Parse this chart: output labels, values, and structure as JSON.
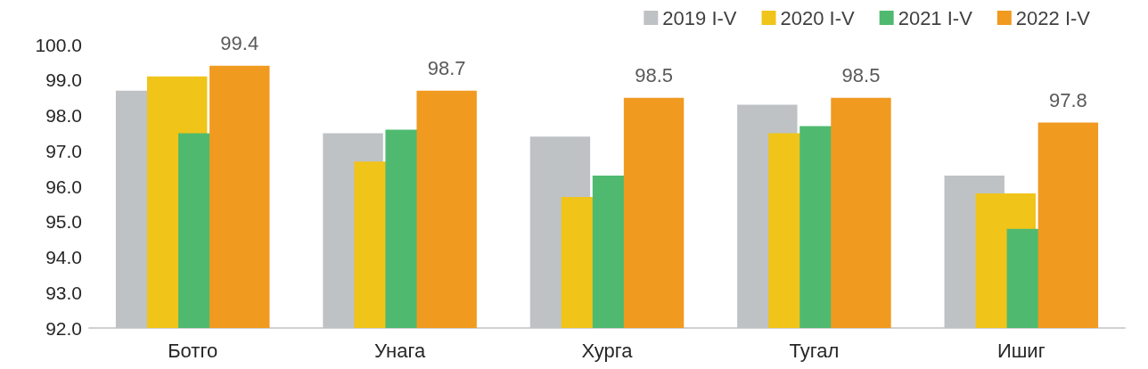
{
  "chart_data": {
    "type": "bar",
    "categories": [
      "Ботго",
      "Унага",
      "Хурга",
      "Тугал",
      "Ишиг"
    ],
    "series": [
      {
        "name": "2019 I-V",
        "color": "#bec2c5",
        "values": [
          98.7,
          97.5,
          97.4,
          98.3,
          96.3
        ]
      },
      {
        "name": "2020 I-V",
        "color": "#f0c419",
        "values": [
          99.1,
          96.7,
          95.7,
          97.5,
          95.8
        ]
      },
      {
        "name": "2021 I-V",
        "color": "#4fba6f",
        "values": [
          97.5,
          97.6,
          96.3,
          97.7,
          94.8
        ]
      },
      {
        "name": "2022 I-V",
        "color": "#f09a20",
        "values": [
          99.4,
          98.7,
          98.5,
          98.5,
          97.8
        ],
        "value_labels": [
          "99.4",
          "98.7",
          "98.5",
          "98.5",
          "97.8"
        ]
      }
    ],
    "ylim": [
      92,
      100
    ],
    "yticks": [
      {
        "value": 92,
        "label": "92.0"
      },
      {
        "value": 93,
        "label": "93.0"
      },
      {
        "value": 94,
        "label": "94.0"
      },
      {
        "value": 95,
        "label": "95.0"
      },
      {
        "value": 96,
        "label": "96.0"
      },
      {
        "value": 97,
        "label": "97.0"
      },
      {
        "value": 98,
        "label": "98.0"
      },
      {
        "value": 99,
        "label": "99.0"
      },
      {
        "value": 100,
        "label": "100.0"
      }
    ],
    "grid": false,
    "legend": "top right"
  }
}
